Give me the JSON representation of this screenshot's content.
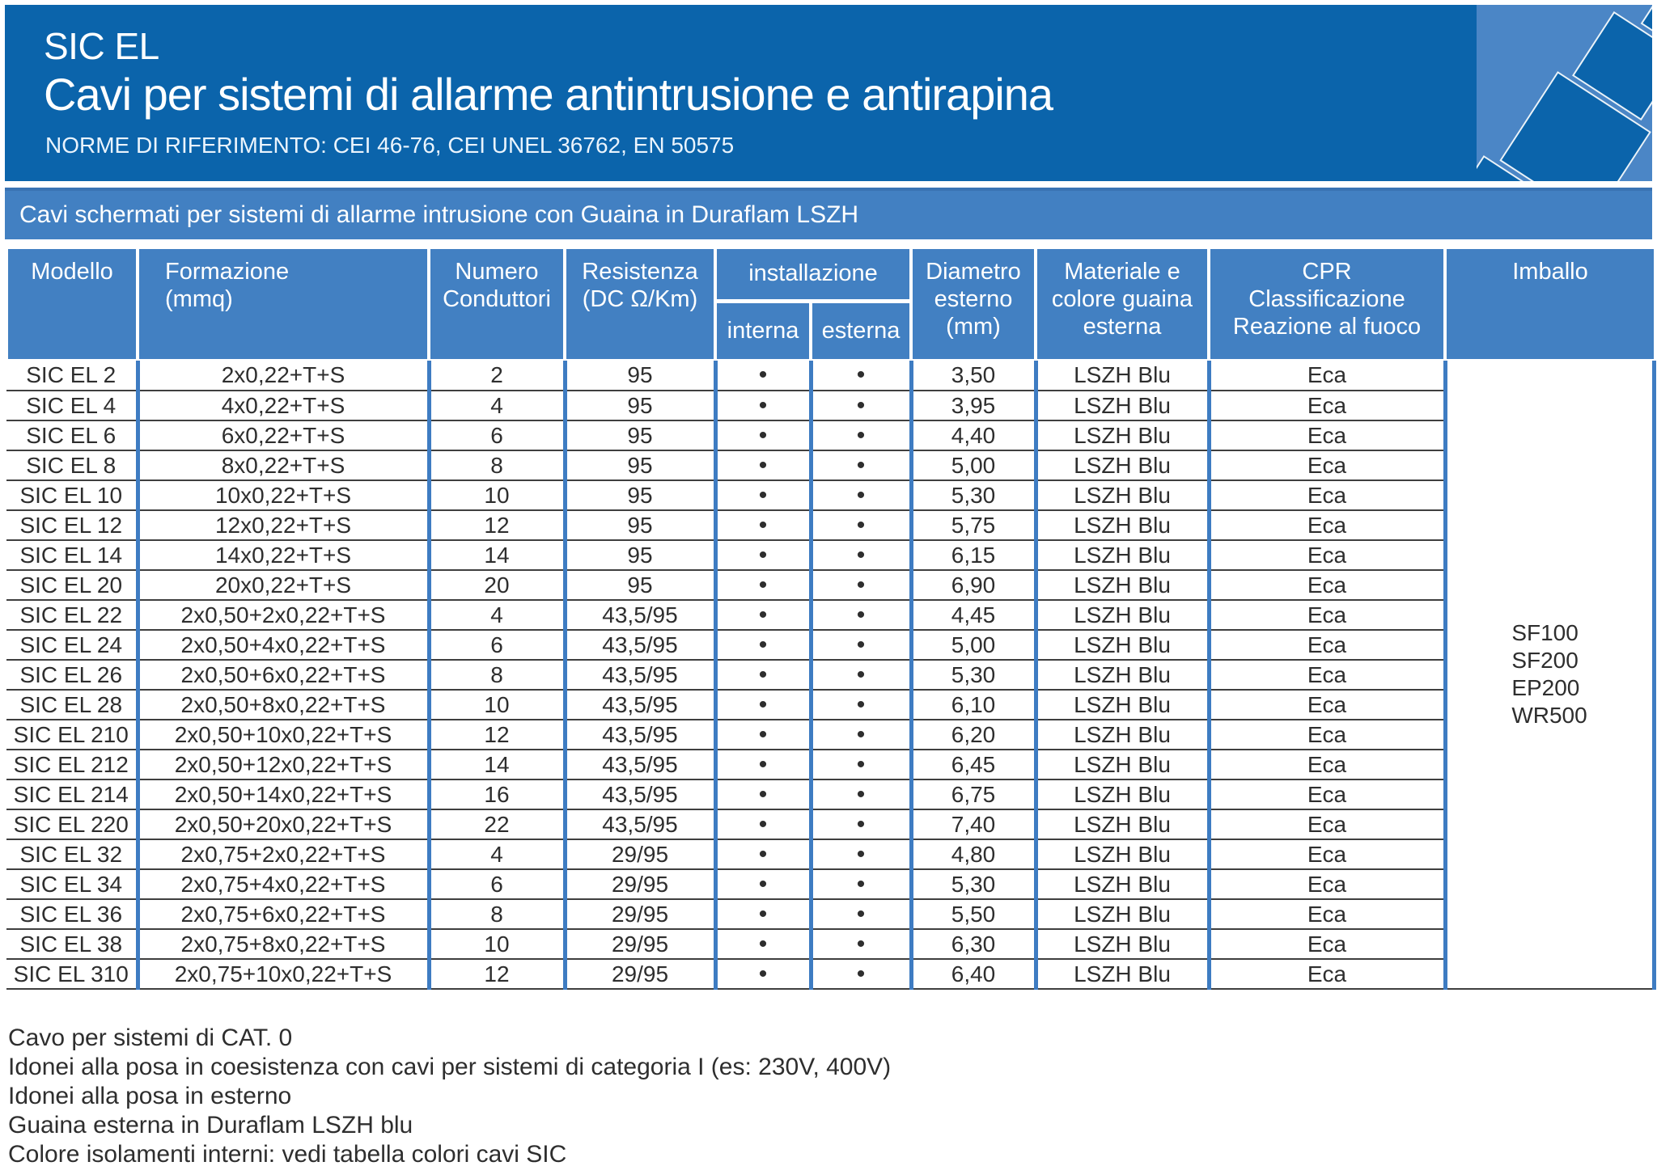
{
  "colors": {
    "dark_blue": "#0b64ab",
    "band_blue": "#4280c2",
    "band_blue_edge": "#3a73b3",
    "deco_blue": "#4b86c6",
    "border_blue": "#3e7cc2",
    "row_line": "#3f3f3f",
    "text_dark": "#2e2e2e",
    "header_text": "#ffffff"
  },
  "header": {
    "product": "SIC EL",
    "title": "Cavi per sistemi di allarme antintrusione e antirapina",
    "norms": "NORME DI RIFERIMENTO: CEI 46-76, CEI UNEL 36762, EN 50575"
  },
  "section_band": {
    "text": "Cavi schermati per sistemi di allarme intrusione con Guaina in Duraflam LSZH"
  },
  "table": {
    "headers": {
      "modello": "Modello",
      "formazione": "Formazione\n(mmq)",
      "numero": "Numero\nConduttori",
      "resistenza": "Resistenza\n(DC Ω/Km)",
      "installazione": "installazione",
      "interna": "interna",
      "esterna": "esterna",
      "diametro": "Diametro\nesterno\n(mm)",
      "materiale": "Materiale e\ncolore guaina\nesterna",
      "cpr": "CPR\nClassificazione\nReazione al fuoco",
      "imballo": "Imballo"
    },
    "dot": "•",
    "imballo_options": "SF100\nSF200\nEP200\nWR500",
    "rows": [
      {
        "modello": "SIC EL 2",
        "formazione": "2x0,22+T+S",
        "conduttori": "2",
        "resistenza": "95",
        "interna": "•",
        "esterna": "•",
        "diametro": "3,50",
        "materiale": "LSZH Blu",
        "cpr": "Eca"
      },
      {
        "modello": "SIC EL 4",
        "formazione": "4x0,22+T+S",
        "conduttori": "4",
        "resistenza": "95",
        "interna": "•",
        "esterna": "•",
        "diametro": "3,95",
        "materiale": "LSZH Blu",
        "cpr": "Eca"
      },
      {
        "modello": "SIC EL 6",
        "formazione": "6x0,22+T+S",
        "conduttori": "6",
        "resistenza": "95",
        "interna": "•",
        "esterna": "•",
        "diametro": "4,40",
        "materiale": "LSZH Blu",
        "cpr": "Eca"
      },
      {
        "modello": "SIC EL 8",
        "formazione": "8x0,22+T+S",
        "conduttori": "8",
        "resistenza": "95",
        "interna": "•",
        "esterna": "•",
        "diametro": "5,00",
        "materiale": "LSZH Blu",
        "cpr": "Eca"
      },
      {
        "modello": "SIC EL 10",
        "formazione": "10x0,22+T+S",
        "conduttori": "10",
        "resistenza": "95",
        "interna": "•",
        "esterna": "•",
        "diametro": "5,30",
        "materiale": "LSZH Blu",
        "cpr": "Eca"
      },
      {
        "modello": "SIC EL 12",
        "formazione": "12x0,22+T+S",
        "conduttori": "12",
        "resistenza": "95",
        "interna": "•",
        "esterna": "•",
        "diametro": "5,75",
        "materiale": "LSZH Blu",
        "cpr": "Eca"
      },
      {
        "modello": "SIC EL 14",
        "formazione": "14x0,22+T+S",
        "conduttori": "14",
        "resistenza": "95",
        "interna": "•",
        "esterna": "•",
        "diametro": "6,15",
        "materiale": "LSZH Blu",
        "cpr": "Eca"
      },
      {
        "modello": "SIC EL 20",
        "formazione": "20x0,22+T+S",
        "conduttori": "20",
        "resistenza": "95",
        "interna": "•",
        "esterna": "•",
        "diametro": "6,90",
        "materiale": "LSZH Blu",
        "cpr": "Eca"
      },
      {
        "modello": "SIC EL 22",
        "formazione": "2x0,50+2x0,22+T+S",
        "conduttori": "4",
        "resistenza": "43,5/95",
        "interna": "•",
        "esterna": "•",
        "diametro": "4,45",
        "materiale": "LSZH Blu",
        "cpr": "Eca"
      },
      {
        "modello": "SIC EL 24",
        "formazione": "2x0,50+4x0,22+T+S",
        "conduttori": "6",
        "resistenza": "43,5/95",
        "interna": "•",
        "esterna": "•",
        "diametro": "5,00",
        "materiale": "LSZH Blu",
        "cpr": "Eca"
      },
      {
        "modello": "SIC EL 26",
        "formazione": "2x0,50+6x0,22+T+S",
        "conduttori": "8",
        "resistenza": "43,5/95",
        "interna": "•",
        "esterna": "•",
        "diametro": "5,30",
        "materiale": "LSZH Blu",
        "cpr": "Eca"
      },
      {
        "modello": "SIC EL 28",
        "formazione": "2x0,50+8x0,22+T+S",
        "conduttori": "10",
        "resistenza": "43,5/95",
        "interna": "•",
        "esterna": "•",
        "diametro": "6,10",
        "materiale": "LSZH Blu",
        "cpr": "Eca"
      },
      {
        "modello": "SIC EL 210",
        "formazione": "2x0,50+10x0,22+T+S",
        "conduttori": "12",
        "resistenza": "43,5/95",
        "interna": "•",
        "esterna": "•",
        "diametro": "6,20",
        "materiale": "LSZH Blu",
        "cpr": "Eca"
      },
      {
        "modello": "SIC EL 212",
        "formazione": "2x0,50+12x0,22+T+S",
        "conduttori": "14",
        "resistenza": "43,5/95",
        "interna": "•",
        "esterna": "•",
        "diametro": "6,45",
        "materiale": "LSZH Blu",
        "cpr": "Eca"
      },
      {
        "modello": "SIC EL 214",
        "formazione": "2x0,50+14x0,22+T+S",
        "conduttori": "16",
        "resistenza": "43,5/95",
        "interna": "•",
        "esterna": "•",
        "diametro": "6,75",
        "materiale": "LSZH Blu",
        "cpr": "Eca"
      },
      {
        "modello": "SIC EL 220",
        "formazione": "2x0,50+20x0,22+T+S",
        "conduttori": "22",
        "resistenza": "43,5/95",
        "interna": "•",
        "esterna": "•",
        "diametro": "7,40",
        "materiale": "LSZH Blu",
        "cpr": "Eca"
      },
      {
        "modello": "SIC EL 32",
        "formazione": "2x0,75+2x0,22+T+S",
        "conduttori": "4",
        "resistenza": "29/95",
        "interna": "•",
        "esterna": "•",
        "diametro": "4,80",
        "materiale": "LSZH Blu",
        "cpr": "Eca"
      },
      {
        "modello": "SIC EL 34",
        "formazione": "2x0,75+4x0,22+T+S",
        "conduttori": "6",
        "resistenza": "29/95",
        "interna": "•",
        "esterna": "•",
        "diametro": "5,30",
        "materiale": "LSZH Blu",
        "cpr": "Eca"
      },
      {
        "modello": "SIC EL 36",
        "formazione": "2x0,75+6x0,22+T+S",
        "conduttori": "8",
        "resistenza": "29/95",
        "interna": "•",
        "esterna": "•",
        "diametro": "5,50",
        "materiale": "LSZH Blu",
        "cpr": "Eca"
      },
      {
        "modello": "SIC EL 38",
        "formazione": "2x0,75+8x0,22+T+S",
        "conduttori": "10",
        "resistenza": "29/95",
        "interna": "•",
        "esterna": "•",
        "diametro": "6,30",
        "materiale": "LSZH Blu",
        "cpr": "Eca"
      },
      {
        "modello": "SIC EL 310",
        "formazione": "2x0,75+10x0,22+T+S",
        "conduttori": "12",
        "resistenza": "29/95",
        "interna": "•",
        "esterna": "•",
        "diametro": "6,40",
        "materiale": "LSZH Blu",
        "cpr": "Eca"
      }
    ]
  },
  "notes": [
    "Cavo per sistemi di CAT. 0",
    "Idonei alla posa in coesistenza con cavi per sistemi di categoria I (es: 230V, 400V)",
    "Idonei alla posa in esterno",
    "Guaina esterna in Duraflam LSZH blu",
    "Colore isolamenti interni: vedi tabella colori cavi SIC"
  ]
}
